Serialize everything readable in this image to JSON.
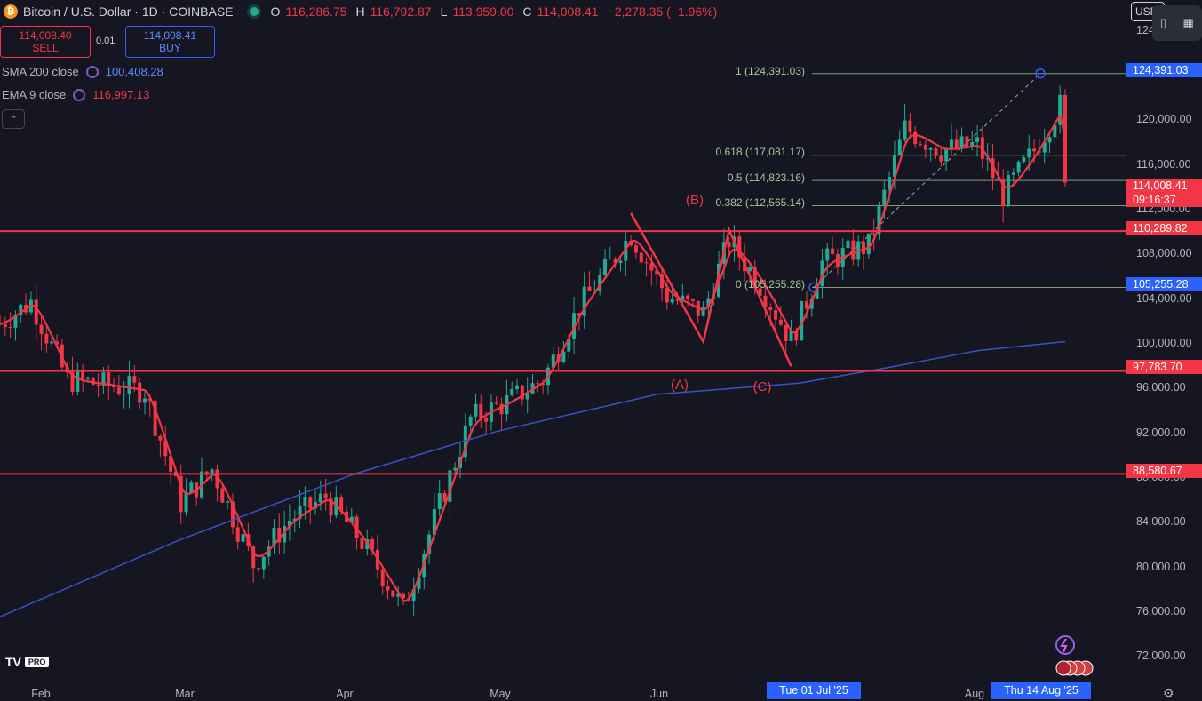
{
  "header": {
    "symbol": "Bitcoin / U.S. Dollar · 1D · COINBASE",
    "o_label": "O",
    "o": "116,286.75",
    "h_label": "H",
    "h": "116,792.87",
    "l_label": "L",
    "l": "113,959.00",
    "c_label": "C",
    "c": "114,008.41",
    "change": "−2,278.35 (−1.96%)"
  },
  "trade": {
    "sell_price": "114,008.40",
    "sell_label": "SELL",
    "spread": "0.01",
    "buy_price": "114,008.41",
    "buy_label": "BUY"
  },
  "indicators": {
    "sma": {
      "label": "SMA 200 close",
      "value": "100,408.28",
      "color": "#5b7cf0"
    },
    "ema": {
      "label": "EMA 9 close",
      "value": "116,997.13",
      "color": "#f23645"
    }
  },
  "currency": "USD",
  "fib": {
    "l1": "1 (124,391.03)",
    "l0618": "0.618 (117,081.17)",
    "l05": "0.5 (114,823.16)",
    "l0382": "0.382 (112,565.14)",
    "l0": "0 (105,255.28)"
  },
  "waves": {
    "a": "(A)",
    "b": "(B)",
    "c": "(C)"
  },
  "price_axis": {
    "ticks": [
      "124,000.00",
      "120,000.00",
      "116,000.00",
      "112,000.00",
      "108,000.00",
      "104,000.00",
      "100,000.00",
      "96,000.00",
      "92,000.00",
      "88,000.00",
      "84,000.00",
      "80,000.00",
      "76,000.00",
      "72,000.00"
    ],
    "tags": {
      "fib_top": "124,391.03",
      "last": "114,008.41",
      "countdown": "09:16:37",
      "res1": "110,289.82",
      "fib_bottom": "105,255.28",
      "res2": "97,783.70",
      "res3": "88,580.67"
    }
  },
  "time_axis": {
    "months": [
      "Feb",
      "Mar",
      "Apr",
      "May",
      "Jun",
      "Aug"
    ],
    "tag_left": "Tue 01 Jul '25",
    "tag_right": "Thu 14 Aug '25"
  },
  "branding": {
    "logo": "TV",
    "pro": "PRO"
  },
  "chart_data": {
    "type": "candlestick",
    "symbol": "BTCUSD",
    "timeframe": "1D",
    "x_range": [
      "2025-01-20",
      "2025-08-14"
    ],
    "y_range": [
      70000,
      126000
    ],
    "horizontal_levels": [
      110289.82,
      97783.7,
      88580.67
    ],
    "fib_retracement": {
      "from": 105255.28,
      "to": 124391.03,
      "levels": {
        "0": 105255.28,
        "0.382": 112565.14,
        "0.5": 114823.16,
        "0.618": 117081.17,
        "1": 124391.03
      }
    },
    "abc_waves": [
      {
        "label": "start",
        "date": "2025-05-22",
        "price": 111900
      },
      {
        "label": "(A)",
        "date": "2025-06-05",
        "price": 100400
      },
      {
        "label": "(B)",
        "date": "2025-06-10",
        "price": 110400
      },
      {
        "label": "(C)",
        "date": "2025-06-22",
        "price": 98200
      }
    ],
    "close_series": [
      [
        "2025-01-20",
        102000
      ],
      [
        "2025-01-26",
        104000
      ],
      [
        "2025-02-02",
        97000
      ],
      [
        "2025-02-10",
        96500
      ],
      [
        "2025-02-17",
        96000
      ],
      [
        "2025-02-24",
        86000
      ],
      [
        "2025-03-02",
        89000
      ],
      [
        "2025-03-10",
        80500
      ],
      [
        "2025-03-17",
        84500
      ],
      [
        "2025-03-24",
        86500
      ],
      [
        "2025-03-31",
        82500
      ],
      [
        "2025-04-08",
        76500
      ],
      [
        "2025-04-14",
        84500
      ],
      [
        "2025-04-21",
        93500
      ],
      [
        "2025-04-28",
        95000
      ],
      [
        "2025-05-05",
        97000
      ],
      [
        "2025-05-12",
        103500
      ],
      [
        "2025-05-22",
        110000
      ],
      [
        "2025-05-29",
        104500
      ],
      [
        "2025-06-05",
        103000
      ],
      [
        "2025-06-10",
        109500
      ],
      [
        "2025-06-16",
        105500
      ],
      [
        "2025-06-22",
        100500
      ],
      [
        "2025-06-28",
        107500
      ],
      [
        "2025-07-07",
        109000
      ],
      [
        "2025-07-14",
        119500
      ],
      [
        "2025-07-21",
        117500
      ],
      [
        "2025-07-28",
        118000
      ],
      [
        "2025-08-02",
        113500
      ],
      [
        "2025-08-08",
        117500
      ],
      [
        "2025-08-13",
        121500
      ],
      [
        "2025-08-14",
        114008.41
      ]
    ]
  }
}
